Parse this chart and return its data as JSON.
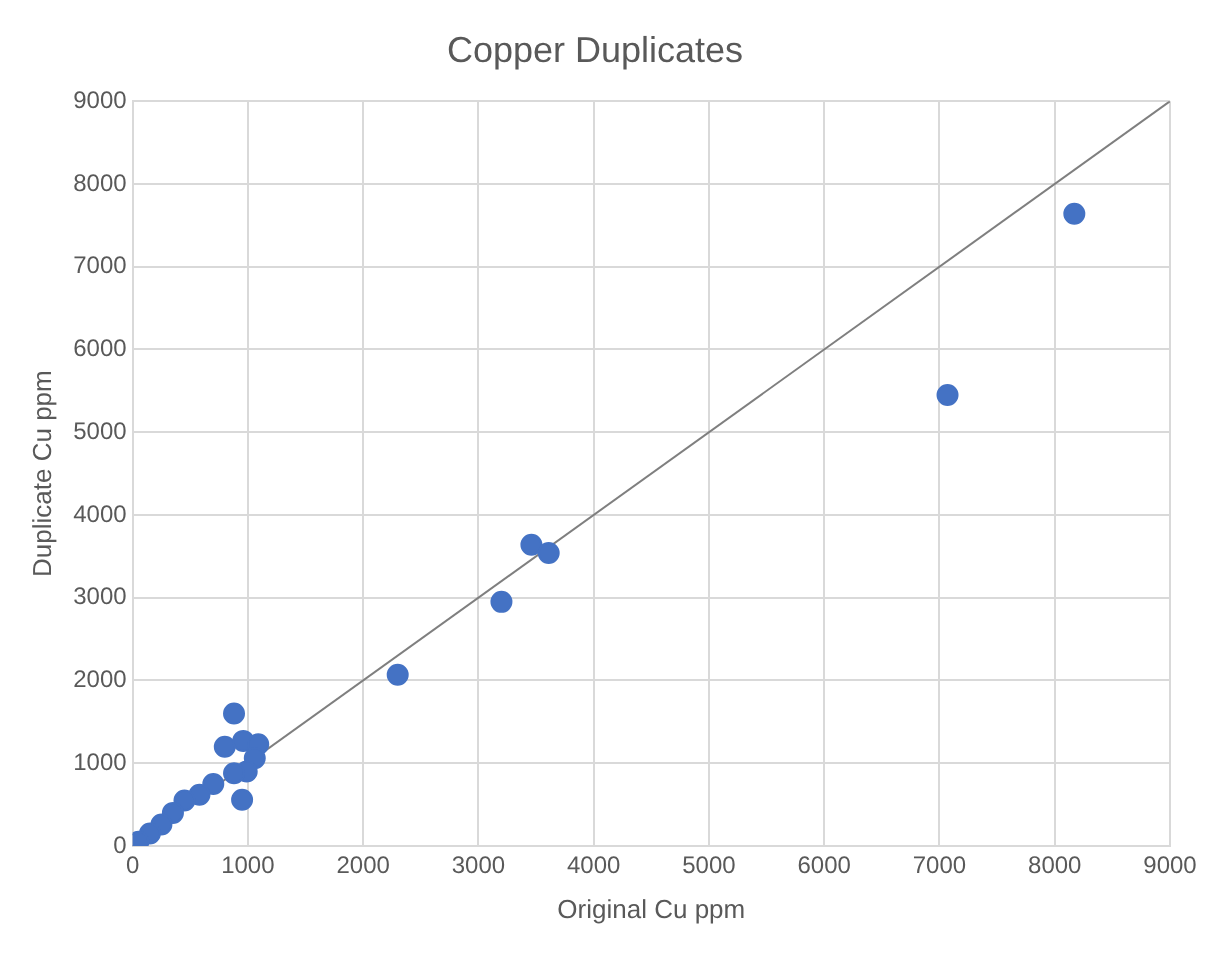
{
  "chart_data": {
    "type": "scatter",
    "title": "Copper Duplicates",
    "xlabel": "Original Cu ppm",
    "ylabel": "Duplicate Cu ppm",
    "xlim": [
      0,
      9000
    ],
    "xticks": [
      0,
      1000,
      2000,
      3000,
      4000,
      5000,
      6000,
      7000,
      8000,
      9000
    ],
    "ylim": [
      0,
      9000
    ],
    "yticks": [
      0,
      1000,
      2000,
      3000,
      4000,
      5000,
      6000,
      7000,
      8000,
      9000
    ],
    "grid": true,
    "legend": false,
    "series": [
      {
        "color": "#4472c4",
        "marker": "circle",
        "x": [
          8170,
          7070,
          3460,
          3610,
          3200,
          2300,
          880,
          800,
          960,
          1090,
          1060,
          990,
          880,
          950,
          700,
          580,
          450,
          350,
          250,
          150,
          50
        ],
        "values": [
          7640,
          5450,
          3640,
          3540,
          2950,
          2070,
          1600,
          1200,
          1270,
          1230,
          1060,
          900,
          880,
          560,
          750,
          620,
          550,
          400,
          260,
          150,
          50
        ]
      },
      {
        "type": "line",
        "color": "#7f7f7f",
        "marker": "none",
        "x": [
          0,
          9000
        ],
        "values": [
          0,
          9000
        ]
      }
    ]
  }
}
